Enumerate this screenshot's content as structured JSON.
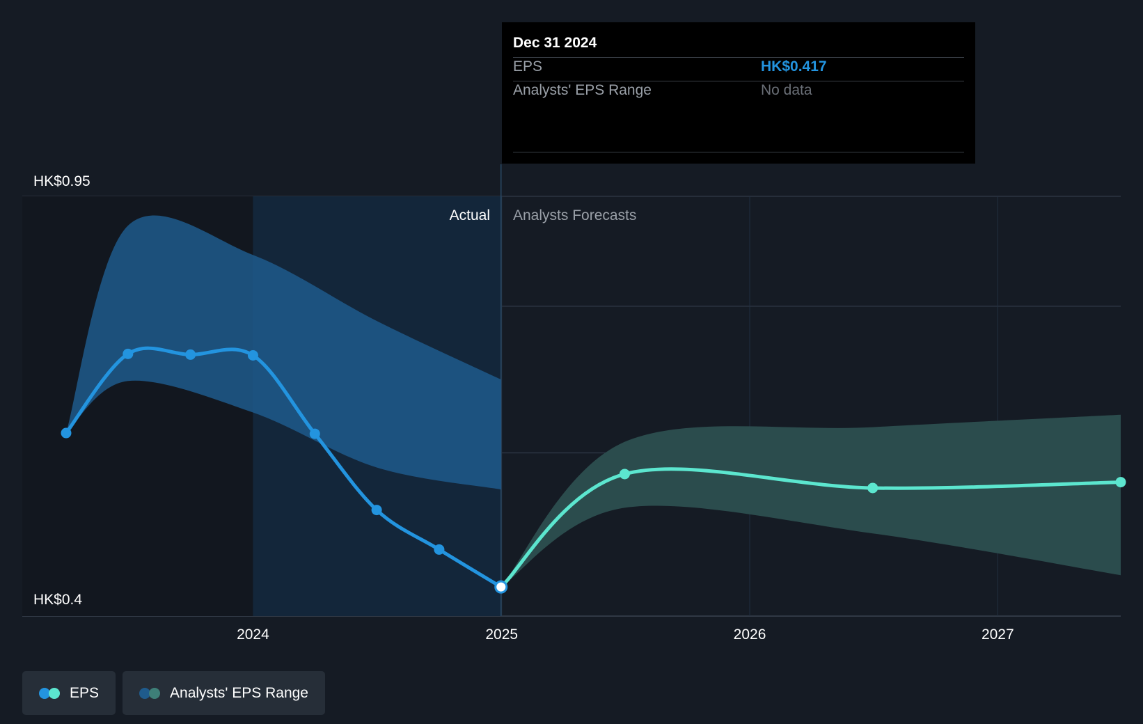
{
  "tooltip": {
    "date": "Dec 31 2024",
    "eps_label": "EPS",
    "eps_value": "HK$0.417",
    "range_label": "Analysts' EPS Range",
    "range_value": "No data"
  },
  "regions": {
    "actual_label": "Actual",
    "forecast_label": "Analysts Forecasts"
  },
  "legend": {
    "eps_label": "EPS",
    "range_label": "Analysts' EPS Range"
  },
  "colors": {
    "background": "#151b24",
    "eps_actual": "#2394df",
    "eps_forecast": "#5ce6cf",
    "range_actual": "#1f5b8c",
    "range_forecast": "#2b4c4d",
    "grid": "#2c3542"
  },
  "chart_data": {
    "type": "line",
    "x_axis": {
      "type": "date",
      "range": [
        "2023-04-01",
        "2027-07-01"
      ],
      "ticks": [
        {
          "date": "2024-01-01",
          "label": "2024"
        },
        {
          "date": "2025-01-01",
          "label": "2025"
        },
        {
          "date": "2026-01-01",
          "label": "2026"
        },
        {
          "date": "2027-01-01",
          "label": "2027"
        }
      ]
    },
    "y_axis": {
      "range": [
        0.4,
        0.95
      ],
      "tick_labels": [
        {
          "value": 0.95,
          "label": "HK$0.95"
        },
        {
          "value": 0.4,
          "label": "HK$0.4"
        }
      ],
      "gridlines": [
        0.95,
        0.8,
        0.6,
        0.4
      ]
    },
    "grid": true,
    "legend_position": "bottom-left",
    "actual_end": "2024-12-31",
    "selected_point": {
      "date": "2024-12-31",
      "value": 0.417
    },
    "series": [
      {
        "name": "EPS",
        "segment": "actual",
        "points": [
          {
            "date": "2023-04-01",
            "value": 0.627
          },
          {
            "date": "2023-07-01",
            "value": 0.735
          },
          {
            "date": "2023-10-01",
            "value": 0.734
          },
          {
            "date": "2024-01-01",
            "value": 0.733
          },
          {
            "date": "2024-04-01",
            "value": 0.626
          },
          {
            "date": "2024-07-01",
            "value": 0.522
          },
          {
            "date": "2024-10-01",
            "value": 0.468
          },
          {
            "date": "2024-12-31",
            "value": 0.417
          }
        ]
      },
      {
        "name": "EPS",
        "segment": "forecast",
        "points": [
          {
            "date": "2024-12-31",
            "value": 0.417
          },
          {
            "date": "2025-07-01",
            "value": 0.571
          },
          {
            "date": "2026-07-01",
            "value": 0.552
          },
          {
            "date": "2027-07-01",
            "value": 0.56
          }
        ]
      }
    ],
    "range_bands": [
      {
        "name": "Analysts' EPS Range",
        "segment": "actual",
        "points": [
          {
            "date": "2023-04-01",
            "low": 0.627,
            "high": 0.627
          },
          {
            "date": "2023-07-01",
            "low": 0.698,
            "high": 0.91
          },
          {
            "date": "2024-01-01",
            "low": 0.655,
            "high": 0.87
          },
          {
            "date": "2024-07-01",
            "low": 0.58,
            "high": 0.78
          },
          {
            "date": "2024-12-31",
            "low": 0.55,
            "high": 0.7
          }
        ]
      },
      {
        "name": "Analysts' EPS Range",
        "segment": "forecast",
        "points": [
          {
            "date": "2024-12-31",
            "low": 0.417,
            "high": 0.417
          },
          {
            "date": "2025-07-01",
            "low": 0.525,
            "high": 0.615
          },
          {
            "date": "2026-07-01",
            "low": 0.49,
            "high": 0.635
          },
          {
            "date": "2027-07-01",
            "low": 0.433,
            "high": 0.652
          }
        ]
      }
    ]
  }
}
